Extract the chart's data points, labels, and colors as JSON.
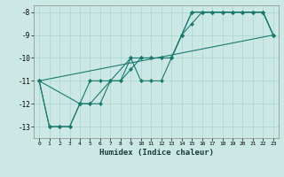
{
  "xlabel": "Humidex (Indice chaleur)",
  "background_color": "#cce8e5",
  "line_color": "#1a7a6e",
  "grid_color": "#aad4d0",
  "xlim": [
    -0.5,
    23.5
  ],
  "ylim": [
    -13.5,
    -7.7
  ],
  "yticks": [
    -13,
    -12,
    -11,
    -10,
    -9,
    -8
  ],
  "xticks": [
    0,
    1,
    2,
    3,
    4,
    5,
    6,
    7,
    8,
    9,
    10,
    11,
    12,
    13,
    14,
    15,
    16,
    17,
    18,
    19,
    20,
    21,
    22,
    23
  ],
  "line1_x": [
    0,
    1,
    2,
    3,
    4,
    5,
    6,
    7,
    8,
    9,
    10,
    11,
    12,
    13,
    14,
    15,
    16,
    17,
    18,
    19,
    20,
    21,
    22,
    23
  ],
  "line1_y": [
    -11,
    -13,
    -13,
    -13,
    -12,
    -11,
    -11,
    -11,
    -11,
    -10,
    -10,
    -10,
    -10,
    -10,
    -9,
    -8,
    -8,
    -8,
    -8,
    -8,
    -8,
    -8,
    -8,
    -9
  ],
  "line2_x": [
    0,
    1,
    2,
    3,
    4,
    5,
    6,
    7,
    8,
    9,
    10,
    11,
    12,
    13,
    14,
    15,
    16,
    17,
    18,
    19,
    20,
    21,
    22,
    23
  ],
  "line2_y": [
    -11,
    -13,
    -13,
    -13,
    -12,
    -12,
    -12,
    -11,
    -11,
    -10.5,
    -10,
    -10,
    -10,
    -10,
    -9,
    -8.5,
    -8,
    -8,
    -8,
    -8,
    -8,
    -8,
    -8,
    -9
  ],
  "line3_x": [
    0,
    4,
    5,
    9,
    10,
    11,
    12,
    13,
    14,
    15,
    16,
    17,
    18,
    19,
    20,
    21,
    22,
    23
  ],
  "line3_y": [
    -11,
    -12,
    -12,
    -10,
    -11,
    -11,
    -11,
    -10,
    -9,
    -8,
    -8,
    -8,
    -8,
    -8,
    -8,
    -8,
    -8,
    -9
  ],
  "line4_x": [
    0,
    23
  ],
  "line4_y": [
    -11,
    -9
  ]
}
